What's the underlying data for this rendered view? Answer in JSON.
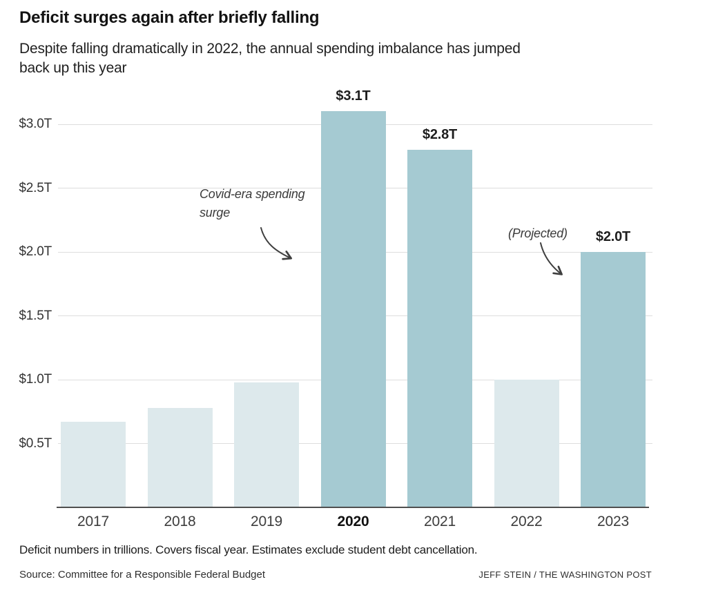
{
  "header": {
    "title": "Deficit surges again after briefly falling",
    "subtitle_lines": [
      "Despite falling dramatically in 2022, the annual spending imbalance has jumped",
      "back up this year"
    ]
  },
  "chart_data": {
    "type": "bar",
    "title": "Deficit surges again after briefly falling",
    "subtitle": "Despite falling dramatically in 2022, the annual spending imbalance has jumped back up this year",
    "categories": [
      "2017",
      "2018",
      "2019",
      "2020",
      "2021",
      "2022",
      "2023"
    ],
    "values": [
      0.67,
      0.78,
      0.98,
      3.1,
      2.8,
      1.0,
      2.0
    ],
    "unit": "trillions of dollars",
    "xlabel": "",
    "ylabel": "",
    "ylim": [
      0,
      3.25
    ],
    "yticks": [
      "$0.5T",
      "$1.0T",
      "$1.5T",
      "$2.0T",
      "$2.5T",
      "$3.0T"
    ],
    "ytick_values": [
      0.5,
      1.0,
      1.5,
      2.0,
      2.5,
      3.0
    ],
    "grid": true,
    "legend": false,
    "bars": [
      {
        "year": "2017",
        "value": 0.67,
        "shade": "light",
        "label": null,
        "bold": false
      },
      {
        "year": "2018",
        "value": 0.78,
        "shade": "light",
        "label": null,
        "bold": false
      },
      {
        "year": "2019",
        "value": 0.98,
        "shade": "light",
        "label": null,
        "bold": false
      },
      {
        "year": "2020",
        "value": 3.1,
        "shade": "dark",
        "label": "$3.1T",
        "bold": true
      },
      {
        "year": "2021",
        "value": 2.8,
        "shade": "dark",
        "label": "$2.8T",
        "bold": false
      },
      {
        "year": "2022",
        "value": 1.0,
        "shade": "light",
        "label": null,
        "bold": false
      },
      {
        "year": "2023",
        "value": 2.0,
        "shade": "dark",
        "label": "$2.0T",
        "bold": false
      }
    ],
    "emphasized_category": "2020",
    "colors": {
      "bar_light": "#dde9ec",
      "bar_dark": "#a5cad2",
      "gridline": "#dddddd",
      "baseline": "#4f4f4f",
      "arrow": "#3f3f3f"
    },
    "annotations": [
      {
        "text_lines": [
          "Covid-era spending",
          "surge"
        ],
        "target": "2020"
      },
      {
        "text_lines": [
          "(Projected)"
        ],
        "target": "2023"
      }
    ]
  },
  "footer": {
    "note": "Deficit numbers in trillions. Covers fiscal year. Estimates exclude student debt cancellation.",
    "source": "Source: Committee for a Responsible Federal Budget",
    "credit": "JEFF STEIN / THE WASHINGTON POST"
  }
}
